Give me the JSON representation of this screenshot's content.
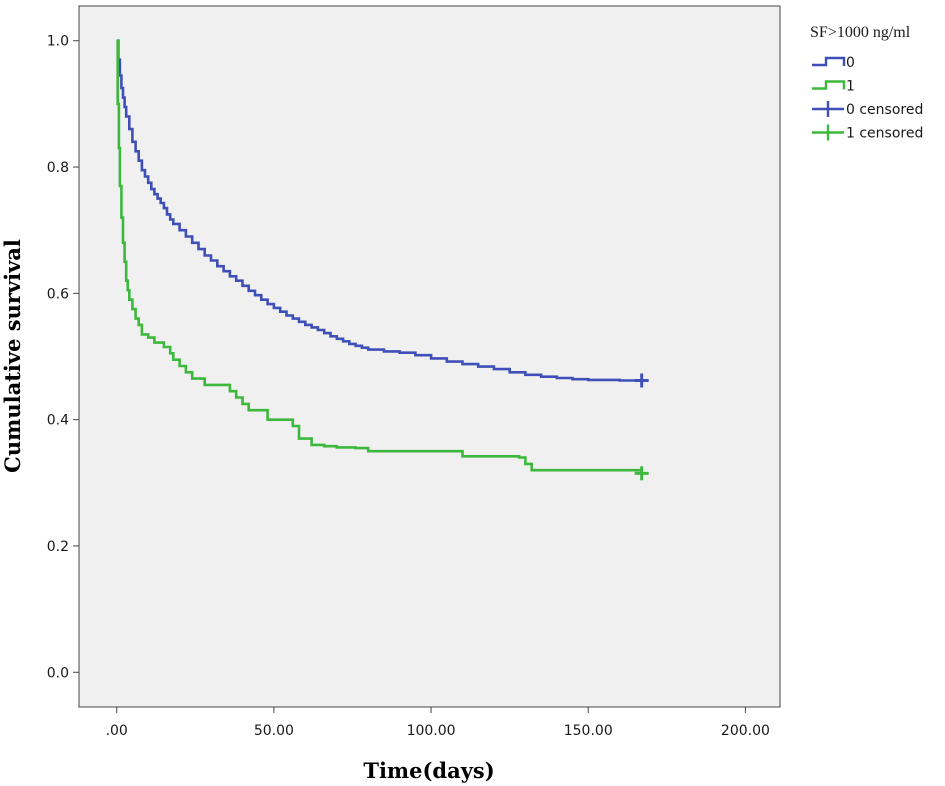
{
  "chart_data": {
    "type": "line",
    "subtype": "kaplan-meier step",
    "title": "",
    "xlabel": "Time(days)",
    "ylabel": "Cumulative survival",
    "xlim": [
      -12,
      211
    ],
    "ylim": [
      -0.055,
      1.055
    ],
    "x_ticks": [
      0,
      50,
      100,
      150,
      200
    ],
    "x_tick_labels": [
      ".00",
      "50.00",
      "100.00",
      "150.00",
      "200.00"
    ],
    "y_ticks": [
      0.0,
      0.2,
      0.4,
      0.6,
      0.8,
      1.0
    ],
    "y_tick_labels": [
      "0.0",
      "0.2",
      "0.4",
      "0.6",
      "0.8",
      "1.0"
    ],
    "grid": false,
    "plot_background": "#f0f0f0",
    "legend": {
      "title": "SF>1000 ng/ml",
      "position": "right",
      "entries": [
        {
          "label": "0",
          "kind": "step",
          "color": "#3f4fb8"
        },
        {
          "label": "1",
          "kind": "step",
          "color": "#3cb83c"
        },
        {
          "label": "0 censored",
          "kind": "censor",
          "color": "#3f4fb8"
        },
        {
          "label": "1 censored",
          "kind": "censor",
          "color": "#3cb83c"
        }
      ]
    },
    "series": [
      {
        "name": "0",
        "color": "#3f4fb8",
        "x": [
          0,
          0.5,
          1,
          1.5,
          2,
          2.5,
          3,
          4,
          5,
          6,
          7,
          8,
          9,
          10,
          11,
          12,
          13,
          14,
          15,
          16,
          17,
          18,
          20,
          22,
          24,
          26,
          28,
          30,
          32,
          34,
          36,
          38,
          40,
          42,
          44,
          46,
          48,
          50,
          52,
          54,
          56,
          58,
          60,
          62,
          64,
          66,
          68,
          70,
          72,
          74,
          76,
          78,
          80,
          85,
          90,
          95,
          100,
          105,
          110,
          115,
          120,
          125,
          130,
          135,
          140,
          145,
          150,
          160,
          167
        ],
        "y": [
          1.0,
          0.97,
          0.945,
          0.925,
          0.91,
          0.895,
          0.88,
          0.86,
          0.84,
          0.825,
          0.81,
          0.795,
          0.785,
          0.775,
          0.765,
          0.757,
          0.75,
          0.743,
          0.735,
          0.725,
          0.717,
          0.71,
          0.7,
          0.69,
          0.68,
          0.67,
          0.66,
          0.652,
          0.643,
          0.635,
          0.627,
          0.62,
          0.612,
          0.604,
          0.597,
          0.59,
          0.583,
          0.577,
          0.571,
          0.565,
          0.56,
          0.555,
          0.55,
          0.546,
          0.542,
          0.537,
          0.532,
          0.528,
          0.524,
          0.52,
          0.517,
          0.514,
          0.511,
          0.508,
          0.506,
          0.502,
          0.497,
          0.492,
          0.488,
          0.484,
          0.48,
          0.475,
          0.471,
          0.468,
          0.466,
          0.464,
          0.463,
          0.462,
          0.462
        ],
        "censored_at": [
          {
            "x": 167,
            "y": 0.462
          }
        ]
      },
      {
        "name": "1",
        "color": "#3cb83c",
        "x": [
          0,
          0.3,
          0.7,
          1,
          1.5,
          2,
          2.5,
          3,
          3.5,
          4,
          5,
          6,
          7,
          8,
          10,
          12,
          15,
          17,
          18,
          20,
          22,
          24,
          28,
          32,
          36,
          38,
          40,
          42,
          48,
          54,
          56,
          58,
          62,
          66,
          70,
          76,
          80,
          100,
          110,
          112,
          128,
          130,
          132,
          167
        ],
        "y": [
          1.0,
          0.9,
          0.83,
          0.77,
          0.72,
          0.68,
          0.65,
          0.62,
          0.605,
          0.59,
          0.575,
          0.56,
          0.55,
          0.535,
          0.53,
          0.522,
          0.515,
          0.505,
          0.495,
          0.485,
          0.475,
          0.465,
          0.455,
          0.455,
          0.445,
          0.435,
          0.425,
          0.415,
          0.4,
          0.4,
          0.39,
          0.37,
          0.36,
          0.358,
          0.356,
          0.355,
          0.35,
          0.35,
          0.342,
          0.342,
          0.34,
          0.33,
          0.32,
          0.315
        ],
        "censored_at": [
          {
            "x": 167,
            "y": 0.315
          }
        ]
      }
    ]
  }
}
